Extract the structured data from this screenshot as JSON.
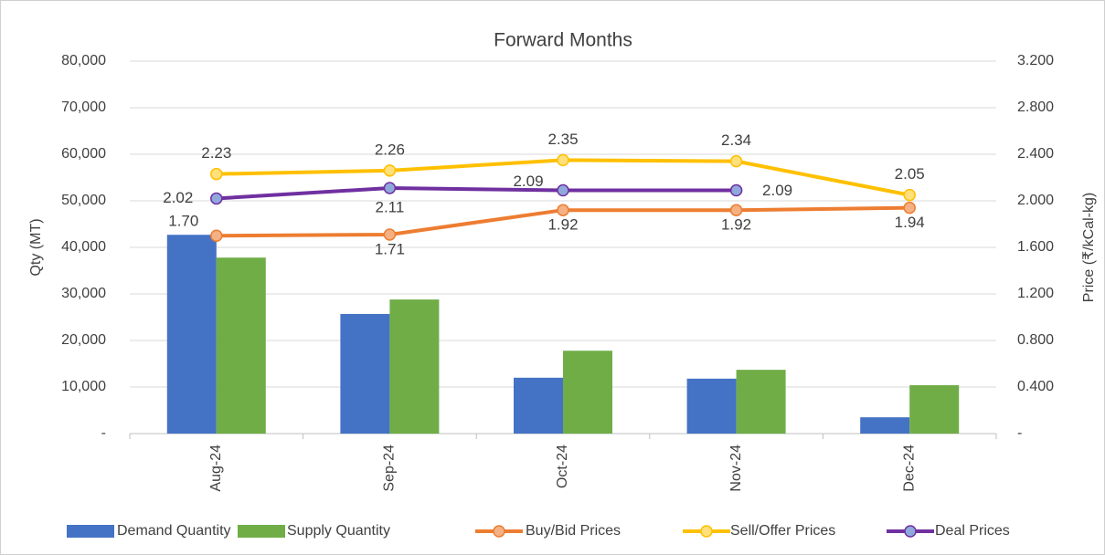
{
  "chart_data": {
    "type": "bar-line",
    "title": "Forward Months",
    "y_label": "Qty (MT)",
    "y2_label": "Price (₹/kCal-kg)",
    "categories": [
      "Aug-24",
      "Sep-24",
      "Oct-24",
      "Nov-24",
      "Dec-24"
    ],
    "ylim": [
      0,
      80000
    ],
    "yticks": [
      {
        "value": 0,
        "label": "-"
      },
      {
        "value": 10000,
        "label": "10,000"
      },
      {
        "value": 20000,
        "label": "20,000"
      },
      {
        "value": 30000,
        "label": "30,000"
      },
      {
        "value": 40000,
        "label": "40,000"
      },
      {
        "value": 50000,
        "label": "50,000"
      },
      {
        "value": 60000,
        "label": "60,000"
      },
      {
        "value": 70000,
        "label": "70,000"
      },
      {
        "value": 80000,
        "label": "80,000"
      }
    ],
    "y2lim": [
      0,
      3.2
    ],
    "y2ticks": [
      {
        "value": 0,
        "label": "-"
      },
      {
        "value": 0.4,
        "label": "0.400"
      },
      {
        "value": 0.8,
        "label": "0.800"
      },
      {
        "value": 1.2,
        "label": "1.200"
      },
      {
        "value": 1.6,
        "label": "1.600"
      },
      {
        "value": 2,
        "label": "2.000"
      },
      {
        "value": 2.4,
        "label": "2.400"
      },
      {
        "value": 2.8,
        "label": "2.800"
      },
      {
        "value": 3.2,
        "label": "3.200"
      }
    ],
    "grid": true,
    "series": [
      {
        "name": "Demand Quantity",
        "type": "bar",
        "color": "#4472c4",
        "values": [
          42700,
          25700,
          12000,
          11800,
          3500
        ]
      },
      {
        "name": "Supply Quantity",
        "type": "bar",
        "color": "#70ad47",
        "values": [
          37800,
          28800,
          17800,
          13700,
          10400
        ]
      },
      {
        "name": "Buy/Bid Prices",
        "type": "line",
        "axis": "y2",
        "color": "#ed7d31",
        "marker_color": "#f4b183",
        "values": [
          1.7,
          1.71,
          1.92,
          1.92,
          1.94
        ],
        "value_labels": [
          "1.70",
          "1.71",
          "1.92",
          "1.92",
          "1.94"
        ]
      },
      {
        "name": "Sell/Offer Prices",
        "type": "line",
        "axis": "y2",
        "color": "#ffc000",
        "marker_color": "#ffe07a",
        "values": [
          2.23,
          2.26,
          2.35,
          2.34,
          2.05
        ],
        "value_labels": [
          "2.23",
          "2.26",
          "2.35",
          "2.34",
          "2.05"
        ]
      },
      {
        "name": "Deal Prices",
        "type": "line",
        "axis": "y2",
        "color": "#7030a0",
        "marker_color": "#8fa9dc",
        "values": [
          2.02,
          2.11,
          2.09,
          2.09,
          null
        ],
        "value_labels": [
          "2.02",
          "2.11",
          "2.09",
          "2.09",
          null
        ]
      }
    ]
  }
}
